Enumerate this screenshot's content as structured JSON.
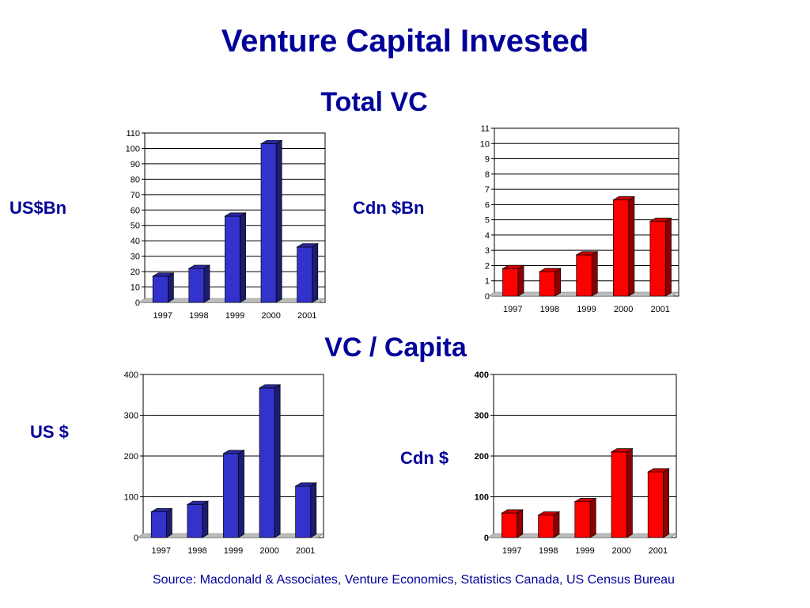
{
  "page": {
    "title": "Venture Capital Invested",
    "section_total": "Total VC",
    "section_capita": "VC / Capita",
    "source": "Source: Macdonald & Associates, Venture Economics, Statistics Canada, US Census Bureau"
  },
  "colors": {
    "title": "#000099",
    "us_bar": "#3333cc",
    "cdn_bar": "#ff0000"
  },
  "chart_data": [
    {
      "id": "us-total",
      "type": "bar",
      "side_label": "US$Bn",
      "categories": [
        "1997",
        "1998",
        "1999",
        "2000",
        "2001"
      ],
      "values": [
        17,
        22,
        56,
        103,
        36
      ],
      "ylim": [
        0,
        110
      ],
      "yticks": [
        0,
        10,
        20,
        30,
        40,
        50,
        60,
        70,
        80,
        90,
        100,
        110
      ],
      "bold_ticks": false,
      "grid": true,
      "color": "#3333cc"
    },
    {
      "id": "cdn-total",
      "type": "bar",
      "side_label": "Cdn $Bn",
      "categories": [
        "1997",
        "1998",
        "1999",
        "2000",
        "2001"
      ],
      "values": [
        1.8,
        1.6,
        2.7,
        6.3,
        4.9
      ],
      "ylim": [
        0,
        11
      ],
      "yticks": [
        0,
        1,
        2,
        3,
        4,
        5,
        6,
        7,
        8,
        9,
        10,
        11
      ],
      "bold_ticks": false,
      "grid": true,
      "color": "#ff0000"
    },
    {
      "id": "us-capita",
      "type": "bar",
      "side_label": "US $",
      "categories": [
        "1997",
        "1998",
        "1999",
        "2000",
        "2001"
      ],
      "values": [
        63,
        81,
        206,
        367,
        126
      ],
      "ylim": [
        0,
        400
      ],
      "yticks": [
        0,
        100,
        200,
        300,
        400
      ],
      "bold_ticks": false,
      "grid": true,
      "color": "#3333cc"
    },
    {
      "id": "cdn-capita",
      "type": "bar",
      "side_label": "Cdn $",
      "categories": [
        "1997",
        "1998",
        "1999",
        "2000",
        "2001"
      ],
      "values": [
        60,
        55,
        88,
        210,
        161
      ],
      "ylim": [
        0,
        400
      ],
      "yticks": [
        0,
        100,
        200,
        300,
        400
      ],
      "bold_ticks": true,
      "grid": true,
      "color": "#ff0000"
    }
  ]
}
